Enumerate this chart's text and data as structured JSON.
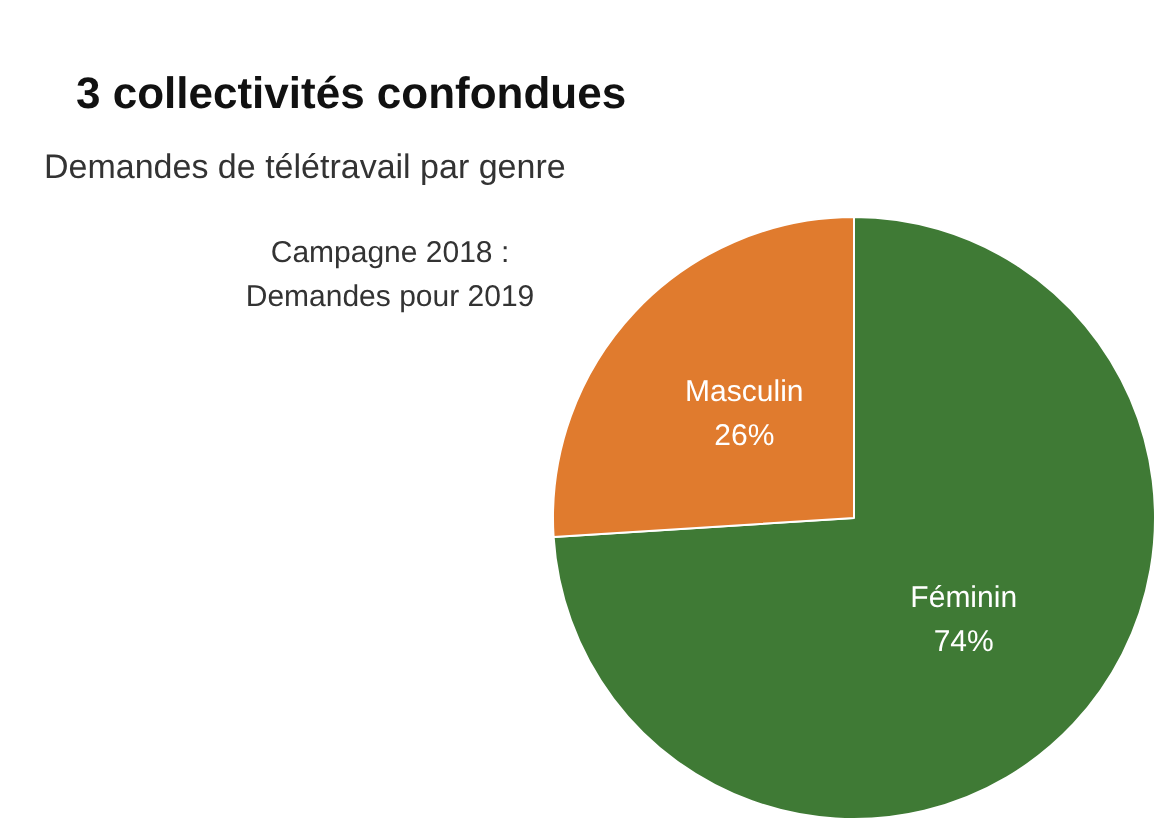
{
  "chart_data": {
    "type": "pie",
    "title": "3 collectivités confondues",
    "subtitle": "Demandes de télétravail par genre",
    "annotations": [
      "Campagne 2018 :\nDemandes pour 2019"
    ],
    "categories": [
      "Féminin",
      "Masculin"
    ],
    "values": [
      74,
      26
    ],
    "colors": [
      "#3f7a35",
      "#e07b2e"
    ],
    "value_labels": [
      "74%",
      "26%"
    ],
    "legend": false
  }
}
